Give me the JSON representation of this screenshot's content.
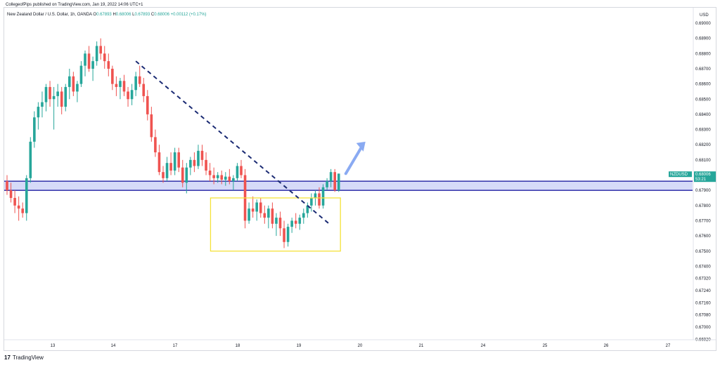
{
  "header": {
    "text": "CollegeofPips published on TradingView.com, Jan 19, 2022 14:06 UTC+1"
  },
  "legend": {
    "title": "New Zealand Dollar / U.S. Dollar, 1h, OANDA",
    "o_label": "O",
    "o_value": "0.67893",
    "h_label": "H",
    "h_value": "0.68006",
    "l_label": "L",
    "l_value": "0.67893",
    "c_label": "C",
    "c_value": "0.68006",
    "change": "+0.00112 (+0.17%)"
  },
  "price_badge": {
    "symbol": "NZDUSD",
    "price": "0.68006",
    "countdown": "53:21"
  },
  "footer": {
    "logo": "17",
    "brand": "TradingView"
  },
  "colors": {
    "up": "#26a69a",
    "down": "#ef5350",
    "zone_fill": "#c5cbf5",
    "zone_line": "#3f3fb0",
    "box": "#f5e23a",
    "trendline": "#1a2a73",
    "arrow": "#8aaaf2"
  },
  "chart_data": {
    "type": "candlestick",
    "y_axis_label": "USD",
    "ylim": [
      0.6692,
      0.6906
    ],
    "y_ticks": [
      "0.69000",
      "0.68900",
      "0.68800",
      "0.68700",
      "0.68600",
      "0.68500",
      "0.68400",
      "0.68300",
      "0.68200",
      "0.68100",
      "0.68000",
      "0.67900",
      "0.67800",
      "0.67700",
      "0.67600",
      "0.67500",
      "0.67400",
      "0.67320",
      "0.67240",
      "0.67160",
      "0.67080",
      "0.67000",
      "0.66920"
    ],
    "x_ticks": [
      "13",
      "14",
      "17",
      "18",
      "19",
      "20",
      "21",
      "24",
      "25",
      "26",
      "27"
    ],
    "candles": [
      [
        0.6796,
        0.68,
        0.6787,
        0.679
      ],
      [
        0.679,
        0.6795,
        0.6782,
        0.6785
      ],
      [
        0.6785,
        0.679,
        0.6775,
        0.678
      ],
      [
        0.678,
        0.6786,
        0.677,
        0.6778
      ],
      [
        0.6778,
        0.6782,
        0.6772,
        0.6775
      ],
      [
        0.6775,
        0.68,
        0.677,
        0.6798
      ],
      [
        0.6798,
        0.6825,
        0.6795,
        0.6822
      ],
      [
        0.6822,
        0.6842,
        0.6818,
        0.6838
      ],
      [
        0.6838,
        0.6848,
        0.683,
        0.6845
      ],
      [
        0.6845,
        0.6855,
        0.6838,
        0.6848
      ],
      [
        0.6848,
        0.686,
        0.6842,
        0.6858
      ],
      [
        0.6858,
        0.6862,
        0.6845,
        0.685
      ],
      [
        0.685,
        0.6858,
        0.683,
        0.6852
      ],
      [
        0.6852,
        0.686,
        0.6845,
        0.6855
      ],
      [
        0.6855,
        0.6858,
        0.684,
        0.6845
      ],
      [
        0.6845,
        0.686,
        0.6842,
        0.6858
      ],
      [
        0.6858,
        0.687,
        0.685,
        0.6865
      ],
      [
        0.6865,
        0.6868,
        0.6852,
        0.6855
      ],
      [
        0.6855,
        0.6862,
        0.6848,
        0.686
      ],
      [
        0.686,
        0.6875,
        0.6858,
        0.6872
      ],
      [
        0.6872,
        0.6882,
        0.6865,
        0.688
      ],
      [
        0.688,
        0.6885,
        0.6868,
        0.687
      ],
      [
        0.687,
        0.6878,
        0.6862,
        0.6875
      ],
      [
        0.6875,
        0.6888,
        0.6872,
        0.6885
      ],
      [
        0.6885,
        0.689,
        0.6876,
        0.688
      ],
      [
        0.688,
        0.6885,
        0.687,
        0.6875
      ],
      [
        0.6875,
        0.688,
        0.6865,
        0.687
      ],
      [
        0.687,
        0.6872,
        0.6856,
        0.686
      ],
      [
        0.686,
        0.6865,
        0.6852,
        0.6858
      ],
      [
        0.6858,
        0.6864,
        0.685,
        0.6862
      ],
      [
        0.6862,
        0.6866,
        0.6852,
        0.6855
      ],
      [
        0.6855,
        0.6858,
        0.6845,
        0.685
      ],
      [
        0.685,
        0.686,
        0.6846,
        0.6856
      ],
      [
        0.6856,
        0.6868,
        0.6852,
        0.6865
      ],
      [
        0.6865,
        0.6872,
        0.6858,
        0.686
      ],
      [
        0.686,
        0.6864,
        0.6848,
        0.6852
      ],
      [
        0.6852,
        0.6856,
        0.6836,
        0.684
      ],
      [
        0.684,
        0.6845,
        0.6822,
        0.6825
      ],
      [
        0.6825,
        0.683,
        0.6812,
        0.6815
      ],
      [
        0.6815,
        0.682,
        0.68,
        0.6802
      ],
      [
        0.6802,
        0.6806,
        0.6795,
        0.6798
      ],
      [
        0.6798,
        0.6812,
        0.6796,
        0.6808
      ],
      [
        0.6808,
        0.6815,
        0.68,
        0.6803
      ],
      [
        0.6803,
        0.6818,
        0.68,
        0.6815
      ],
      [
        0.6815,
        0.6818,
        0.6802,
        0.6805
      ],
      [
        0.6805,
        0.681,
        0.6792,
        0.6795
      ],
      [
        0.6795,
        0.6808,
        0.6788,
        0.6805
      ],
      [
        0.6805,
        0.6812,
        0.68,
        0.681
      ],
      [
        0.681,
        0.6815,
        0.6802,
        0.6806
      ],
      [
        0.6806,
        0.682,
        0.6804,
        0.6816
      ],
      [
        0.6816,
        0.682,
        0.6806,
        0.681
      ],
      [
        0.681,
        0.6815,
        0.68,
        0.6803
      ],
      [
        0.6803,
        0.6808,
        0.6796,
        0.68
      ],
      [
        0.68,
        0.6805,
        0.6794,
        0.6798
      ],
      [
        0.6798,
        0.6802,
        0.6795,
        0.68
      ],
      [
        0.68,
        0.6803,
        0.6794,
        0.6797
      ],
      [
        0.6797,
        0.6802,
        0.6793,
        0.6799
      ],
      [
        0.6799,
        0.6804,
        0.6794,
        0.6796
      ],
      [
        0.6796,
        0.68,
        0.679,
        0.6798
      ],
      [
        0.6798,
        0.6808,
        0.6796,
        0.6806
      ],
      [
        0.6806,
        0.681,
        0.6798,
        0.68
      ],
      [
        0.68,
        0.6804,
        0.6765,
        0.677
      ],
      [
        0.677,
        0.6782,
        0.6768,
        0.6778
      ],
      [
        0.6778,
        0.6786,
        0.6772,
        0.6776
      ],
      [
        0.6776,
        0.6784,
        0.677,
        0.6782
      ],
      [
        0.6782,
        0.6785,
        0.6772,
        0.6775
      ],
      [
        0.6775,
        0.678,
        0.6768,
        0.6772
      ],
      [
        0.6772,
        0.678,
        0.6765,
        0.6778
      ],
      [
        0.6778,
        0.6782,
        0.6765,
        0.6768
      ],
      [
        0.6768,
        0.6775,
        0.676,
        0.6772
      ],
      [
        0.6772,
        0.6776,
        0.676,
        0.6765
      ],
      [
        0.6765,
        0.677,
        0.6752,
        0.6756
      ],
      [
        0.6756,
        0.6768,
        0.6753,
        0.6766
      ],
      [
        0.6766,
        0.6772,
        0.6762,
        0.677
      ],
      [
        0.677,
        0.6775,
        0.6765,
        0.6768
      ],
      [
        0.6768,
        0.6774,
        0.6764,
        0.6772
      ],
      [
        0.6772,
        0.6778,
        0.6768,
        0.6775
      ],
      [
        0.6775,
        0.6782,
        0.6772,
        0.678
      ],
      [
        0.678,
        0.6788,
        0.6776,
        0.6785
      ],
      [
        0.6785,
        0.679,
        0.678,
        0.6788
      ],
      [
        0.6788,
        0.6792,
        0.6778,
        0.678
      ],
      [
        0.678,
        0.6794,
        0.6778,
        0.6792
      ],
      [
        0.6792,
        0.6798,
        0.679,
        0.6796
      ],
      [
        0.6796,
        0.6804,
        0.6792,
        0.6802
      ],
      [
        0.6802,
        0.6804,
        0.6789,
        0.679
      ],
      [
        0.679,
        0.6801,
        0.6789,
        0.6801
      ]
    ],
    "resistance_zone": [
      0.679,
      0.6796
    ],
    "consolidation_box": {
      "price_range": [
        0.675,
        0.6785
      ],
      "candle_range": [
        59,
        84
      ]
    },
    "trendline": {
      "from": [
        33,
        0.6875
      ],
      "to": [
        83,
        0.6767
      ]
    }
  }
}
